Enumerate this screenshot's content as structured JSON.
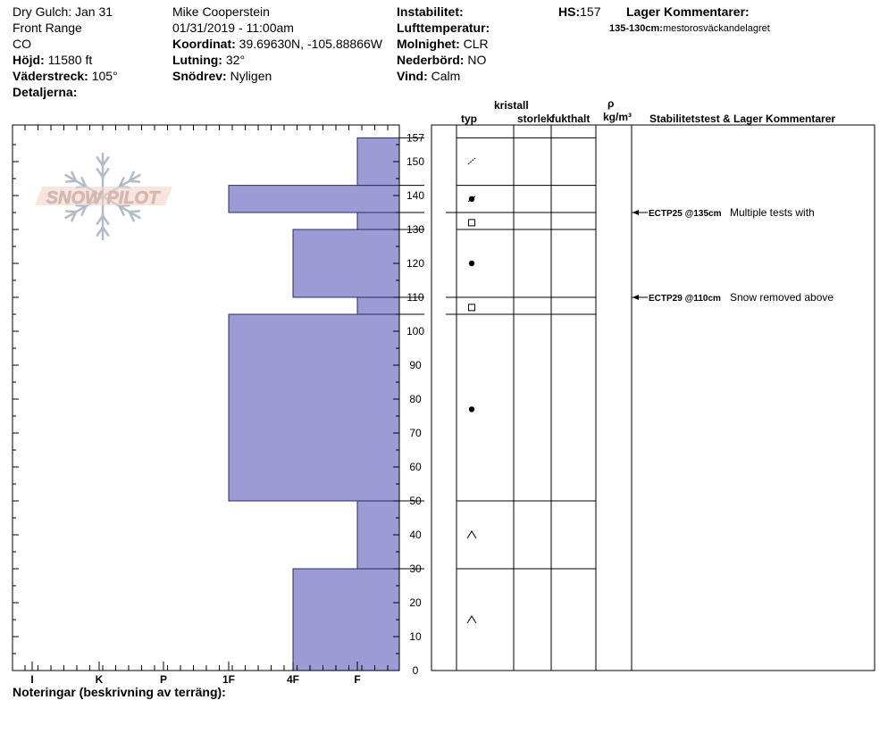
{
  "header": {
    "col1": [
      "Dry Gulch: Jan 31",
      "Front Range",
      "CO"
    ],
    "elevation": {
      "label": "Höjd:",
      "value": "11580 ft"
    },
    "aspect": {
      "label": "Väderstreck:",
      "value": "105°"
    },
    "details_label": "Detaljerna:",
    "observer": "Mike Cooperstein",
    "datetime": "01/31/2019 - 11:00am",
    "coord": {
      "label": "Koordinat:",
      "value": "39.69630N, -105.88866W"
    },
    "slope": {
      "label": "Lutning:",
      "value": "32°"
    },
    "drift": {
      "label": "Snödrev:",
      "value": "Nyligen"
    },
    "instability": {
      "label": "Instabilitet:",
      "value": ""
    },
    "air_temp": {
      "label": "Lufttemperatur:",
      "value": ""
    },
    "sky": {
      "label": "Molnighet:",
      "value": "CLR"
    },
    "precip": {
      "label": "Nederbörd:",
      "value": "NO"
    },
    "wind": {
      "label": "Vind:",
      "value": "Calm"
    },
    "hs": {
      "label": "HS:",
      "value": "157"
    },
    "layer_comments_title": "Lager Kommentarer:",
    "layer_comment": {
      "range": "135-130cm:",
      "text": "mestorosväckandelagret"
    }
  },
  "columns": {
    "crystal": "kristall",
    "type": "typ",
    "size": "storlek",
    "moisture": "fukthalt",
    "rho": "ρ",
    "density_unit": "kg/m³",
    "stability": "Stabilitetstest & Lager Kommentarer"
  },
  "logo_text": "SNOW PILOT",
  "notes_label": "Noteringar (beskrivning av terräng):",
  "colors": {
    "layer_fill": "#9b9bd6",
    "logo_text": "#e8b4a0",
    "logo_flake": "#b0bcc8"
  },
  "chart_data": {
    "type": "bar",
    "orientation": "horizontal",
    "y_axis": {
      "min": 0,
      "max": 157,
      "ticks": [
        0,
        10,
        20,
        30,
        40,
        50,
        60,
        70,
        80,
        90,
        100,
        110,
        120,
        130,
        140,
        150,
        157
      ]
    },
    "x_axis": {
      "categories": [
        "I",
        "K",
        "P",
        "1F",
        "4F",
        "F"
      ]
    },
    "hardness_layers": [
      {
        "bottom": 0,
        "top": 30,
        "hardness": "4F"
      },
      {
        "bottom": 30,
        "top": 50,
        "hardness": "F"
      },
      {
        "bottom": 50,
        "top": 105,
        "hardness": "1F"
      },
      {
        "bottom": 105,
        "top": 110,
        "hardness": "F"
      },
      {
        "bottom": 110,
        "top": 130,
        "hardness": "4F"
      },
      {
        "bottom": 130,
        "top": 135,
        "hardness": "F"
      },
      {
        "bottom": 135,
        "top": 143,
        "hardness": "1F"
      },
      {
        "bottom": 143,
        "top": 157,
        "hardness": "F"
      }
    ],
    "layer_boundaries": [
      157,
      143,
      135,
      130,
      110,
      105,
      50,
      30
    ],
    "grain_symbols": [
      {
        "height": 150,
        "symbol": "precipitation-particle"
      },
      {
        "height": 139,
        "symbol": "rounded-grain-cluster"
      },
      {
        "height": 132,
        "symbol": "faceted-square"
      },
      {
        "height": 120,
        "symbol": "rounded-grain"
      },
      {
        "height": 107,
        "symbol": "faceted-square"
      },
      {
        "height": 77,
        "symbol": "rounded-grain"
      },
      {
        "height": 40,
        "symbol": "depth-hoar"
      },
      {
        "height": 15,
        "symbol": "depth-hoar"
      }
    ],
    "stability_tests": [
      {
        "height": 135,
        "test": "ECTP25 @135cm",
        "comment": "Multiple tests with"
      },
      {
        "height": 110,
        "test": "ECTP29 @110cm",
        "comment": "Snow removed above"
      }
    ]
  }
}
